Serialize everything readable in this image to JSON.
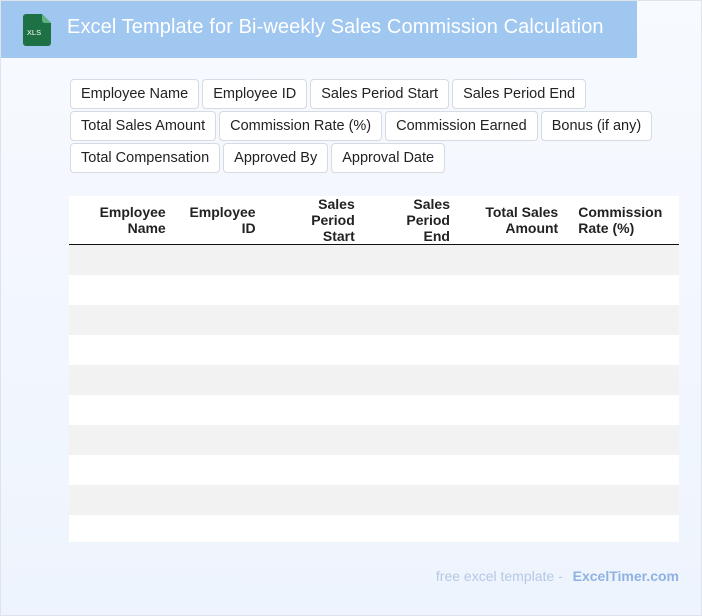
{
  "header": {
    "icon_label": "XLS",
    "title": "Excel Template for Bi-weekly Sales Commission Calculation"
  },
  "fields": [
    [
      "Employee Name",
      "Employee ID",
      "Sales Period Start",
      "Sales Period End"
    ],
    [
      "Total Sales Amount",
      "Commission Rate (%)",
      "Commission Earned",
      "Bonus (if any)"
    ],
    [
      "Total Compensation",
      "Approved By",
      "Approval Date"
    ]
  ],
  "table": {
    "columns": [
      {
        "line1": "Employee",
        "line2": "Name"
      },
      {
        "line1": "Employee",
        "line2": "ID"
      },
      {
        "line1": "Sales Period",
        "line2": "Start"
      },
      {
        "line1": "Sales Period",
        "line2": "End"
      },
      {
        "line1": "Total Sales",
        "line2": "Amount"
      },
      {
        "line1": "Commission",
        "line2": "Rate (%)"
      }
    ],
    "row_count": 10
  },
  "footer": {
    "text": "free excel template -",
    "brand": "ExcelTimer.com"
  },
  "colors": {
    "header_bg": "#9fc7f0",
    "icon_green": "#1e7145",
    "row_stripe": "#f2f2f2"
  }
}
